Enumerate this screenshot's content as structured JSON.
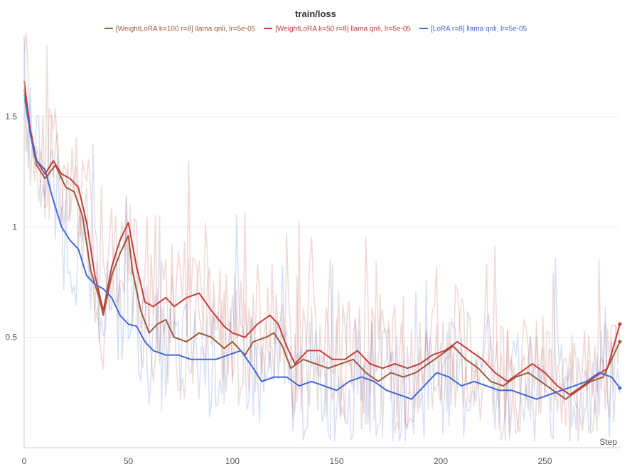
{
  "chart_data": {
    "type": "line",
    "title": "train/loss",
    "xlabel": "Step",
    "ylabel": "",
    "xlim": [
      0,
      286
    ],
    "ylim": [
      0.0,
      1.9
    ],
    "x_ticks": [
      0,
      50,
      100,
      150,
      200,
      250
    ],
    "y_ticks": [
      0.5,
      1.0,
      1.5
    ],
    "y_tick_labels": [
      "0.5",
      "1",
      "1.5"
    ],
    "grid": true,
    "legend_position": "top-center",
    "smoothing_note": "solid lines are smoothed values; faint lines are raw values",
    "series": [
      {
        "name": "[WeightLoRA k=100 r=8] llama qnli, lr=5e-05",
        "color": "#9c5a3c",
        "smoothed": [
          {
            "x": 0,
            "y": 1.62
          },
          {
            "x": 3,
            "y": 1.42
          },
          {
            "x": 6,
            "y": 1.28
          },
          {
            "x": 10,
            "y": 1.22
          },
          {
            "x": 15,
            "y": 1.28
          },
          {
            "x": 20,
            "y": 1.18
          },
          {
            "x": 24,
            "y": 1.16
          },
          {
            "x": 28,
            "y": 1.05
          },
          {
            "x": 32,
            "y": 0.8
          },
          {
            "x": 36,
            "y": 0.68
          },
          {
            "x": 38,
            "y": 0.6
          },
          {
            "x": 42,
            "y": 0.78
          },
          {
            "x": 46,
            "y": 0.88
          },
          {
            "x": 50,
            "y": 0.96
          },
          {
            "x": 52,
            "y": 0.8
          },
          {
            "x": 56,
            "y": 0.62
          },
          {
            "x": 60,
            "y": 0.52
          },
          {
            "x": 64,
            "y": 0.56
          },
          {
            "x": 68,
            "y": 0.58
          },
          {
            "x": 72,
            "y": 0.5
          },
          {
            "x": 78,
            "y": 0.48
          },
          {
            "x": 84,
            "y": 0.52
          },
          {
            "x": 90,
            "y": 0.5
          },
          {
            "x": 96,
            "y": 0.45
          },
          {
            "x": 100,
            "y": 0.48
          },
          {
            "x": 106,
            "y": 0.42
          },
          {
            "x": 110,
            "y": 0.48
          },
          {
            "x": 116,
            "y": 0.5
          },
          {
            "x": 120,
            "y": 0.52
          },
          {
            "x": 124,
            "y": 0.46
          },
          {
            "x": 128,
            "y": 0.36
          },
          {
            "x": 134,
            "y": 0.4
          },
          {
            "x": 140,
            "y": 0.38
          },
          {
            "x": 146,
            "y": 0.36
          },
          {
            "x": 152,
            "y": 0.38
          },
          {
            "x": 158,
            "y": 0.4
          },
          {
            "x": 164,
            "y": 0.34
          },
          {
            "x": 170,
            "y": 0.3
          },
          {
            "x": 176,
            "y": 0.34
          },
          {
            "x": 182,
            "y": 0.32
          },
          {
            "x": 188,
            "y": 0.34
          },
          {
            "x": 194,
            "y": 0.38
          },
          {
            "x": 200,
            "y": 0.42
          },
          {
            "x": 206,
            "y": 0.46
          },
          {
            "x": 212,
            "y": 0.4
          },
          {
            "x": 218,
            "y": 0.36
          },
          {
            "x": 224,
            "y": 0.3
          },
          {
            "x": 230,
            "y": 0.28
          },
          {
            "x": 236,
            "y": 0.32
          },
          {
            "x": 242,
            "y": 0.34
          },
          {
            "x": 248,
            "y": 0.3
          },
          {
            "x": 254,
            "y": 0.26
          },
          {
            "x": 260,
            "y": 0.22
          },
          {
            "x": 266,
            "y": 0.26
          },
          {
            "x": 272,
            "y": 0.3
          },
          {
            "x": 278,
            "y": 0.32
          },
          {
            "x": 282,
            "y": 0.4
          },
          {
            "x": 286,
            "y": 0.48
          }
        ]
      },
      {
        "name": "[WeightLoRA k=50 r=8] llama qnli, lr=5e-05",
        "color": "#cc3a3a",
        "smoothed": [
          {
            "x": 0,
            "y": 1.66
          },
          {
            "x": 3,
            "y": 1.44
          },
          {
            "x": 6,
            "y": 1.3
          },
          {
            "x": 10,
            "y": 1.24
          },
          {
            "x": 14,
            "y": 1.3
          },
          {
            "x": 18,
            "y": 1.24
          },
          {
            "x": 22,
            "y": 1.22
          },
          {
            "x": 26,
            "y": 1.18
          },
          {
            "x": 30,
            "y": 1.02
          },
          {
            "x": 34,
            "y": 0.78
          },
          {
            "x": 38,
            "y": 0.62
          },
          {
            "x": 42,
            "y": 0.82
          },
          {
            "x": 46,
            "y": 0.94
          },
          {
            "x": 50,
            "y": 1.02
          },
          {
            "x": 54,
            "y": 0.82
          },
          {
            "x": 58,
            "y": 0.66
          },
          {
            "x": 62,
            "y": 0.64
          },
          {
            "x": 68,
            "y": 0.68
          },
          {
            "x": 72,
            "y": 0.64
          },
          {
            "x": 78,
            "y": 0.68
          },
          {
            "x": 84,
            "y": 0.7
          },
          {
            "x": 90,
            "y": 0.62
          },
          {
            "x": 96,
            "y": 0.55
          },
          {
            "x": 100,
            "y": 0.52
          },
          {
            "x": 106,
            "y": 0.5
          },
          {
            "x": 112,
            "y": 0.56
          },
          {
            "x": 118,
            "y": 0.6
          },
          {
            "x": 122,
            "y": 0.56
          },
          {
            "x": 126,
            "y": 0.46
          },
          {
            "x": 130,
            "y": 0.38
          },
          {
            "x": 136,
            "y": 0.44
          },
          {
            "x": 142,
            "y": 0.44
          },
          {
            "x": 148,
            "y": 0.4
          },
          {
            "x": 154,
            "y": 0.4
          },
          {
            "x": 160,
            "y": 0.44
          },
          {
            "x": 166,
            "y": 0.38
          },
          {
            "x": 172,
            "y": 0.36
          },
          {
            "x": 178,
            "y": 0.38
          },
          {
            "x": 184,
            "y": 0.36
          },
          {
            "x": 190,
            "y": 0.38
          },
          {
            "x": 196,
            "y": 0.42
          },
          {
            "x": 202,
            "y": 0.44
          },
          {
            "x": 208,
            "y": 0.48
          },
          {
            "x": 214,
            "y": 0.44
          },
          {
            "x": 220,
            "y": 0.4
          },
          {
            "x": 226,
            "y": 0.34
          },
          {
            "x": 232,
            "y": 0.3
          },
          {
            "x": 238,
            "y": 0.34
          },
          {
            "x": 244,
            "y": 0.38
          },
          {
            "x": 250,
            "y": 0.34
          },
          {
            "x": 256,
            "y": 0.28
          },
          {
            "x": 262,
            "y": 0.24
          },
          {
            "x": 268,
            "y": 0.28
          },
          {
            "x": 274,
            "y": 0.32
          },
          {
            "x": 280,
            "y": 0.36
          },
          {
            "x": 283,
            "y": 0.46
          },
          {
            "x": 286,
            "y": 0.56
          }
        ]
      },
      {
        "name": "[LoRA r=8] llama qnli, lr=5e-05",
        "color": "#4169d8",
        "smoothed": [
          {
            "x": 0,
            "y": 1.6
          },
          {
            "x": 3,
            "y": 1.42
          },
          {
            "x": 6,
            "y": 1.3
          },
          {
            "x": 10,
            "y": 1.26
          },
          {
            "x": 14,
            "y": 1.12
          },
          {
            "x": 18,
            "y": 1.0
          },
          {
            "x": 22,
            "y": 0.94
          },
          {
            "x": 26,
            "y": 0.9
          },
          {
            "x": 30,
            "y": 0.78
          },
          {
            "x": 34,
            "y": 0.74
          },
          {
            "x": 38,
            "y": 0.72
          },
          {
            "x": 42,
            "y": 0.68
          },
          {
            "x": 46,
            "y": 0.6
          },
          {
            "x": 50,
            "y": 0.56
          },
          {
            "x": 54,
            "y": 0.55
          },
          {
            "x": 58,
            "y": 0.48
          },
          {
            "x": 62,
            "y": 0.44
          },
          {
            "x": 68,
            "y": 0.42
          },
          {
            "x": 74,
            "y": 0.42
          },
          {
            "x": 80,
            "y": 0.4
          },
          {
            "x": 86,
            "y": 0.4
          },
          {
            "x": 92,
            "y": 0.4
          },
          {
            "x": 98,
            "y": 0.42
          },
          {
            "x": 104,
            "y": 0.44
          },
          {
            "x": 110,
            "y": 0.36
          },
          {
            "x": 114,
            "y": 0.3
          },
          {
            "x": 120,
            "y": 0.32
          },
          {
            "x": 126,
            "y": 0.32
          },
          {
            "x": 132,
            "y": 0.28
          },
          {
            "x": 138,
            "y": 0.3
          },
          {
            "x": 144,
            "y": 0.28
          },
          {
            "x": 150,
            "y": 0.26
          },
          {
            "x": 156,
            "y": 0.3
          },
          {
            "x": 162,
            "y": 0.32
          },
          {
            "x": 168,
            "y": 0.3
          },
          {
            "x": 174,
            "y": 0.26
          },
          {
            "x": 180,
            "y": 0.24
          },
          {
            "x": 186,
            "y": 0.22
          },
          {
            "x": 192,
            "y": 0.28
          },
          {
            "x": 198,
            "y": 0.34
          },
          {
            "x": 204,
            "y": 0.32
          },
          {
            "x": 210,
            "y": 0.28
          },
          {
            "x": 216,
            "y": 0.3
          },
          {
            "x": 222,
            "y": 0.28
          },
          {
            "x": 228,
            "y": 0.26
          },
          {
            "x": 234,
            "y": 0.26
          },
          {
            "x": 240,
            "y": 0.24
          },
          {
            "x": 246,
            "y": 0.22
          },
          {
            "x": 252,
            "y": 0.24
          },
          {
            "x": 258,
            "y": 0.26
          },
          {
            "x": 264,
            "y": 0.28
          },
          {
            "x": 270,
            "y": 0.3
          },
          {
            "x": 276,
            "y": 0.34
          },
          {
            "x": 282,
            "y": 0.32
          },
          {
            "x": 286,
            "y": 0.27
          }
        ]
      }
    ]
  }
}
